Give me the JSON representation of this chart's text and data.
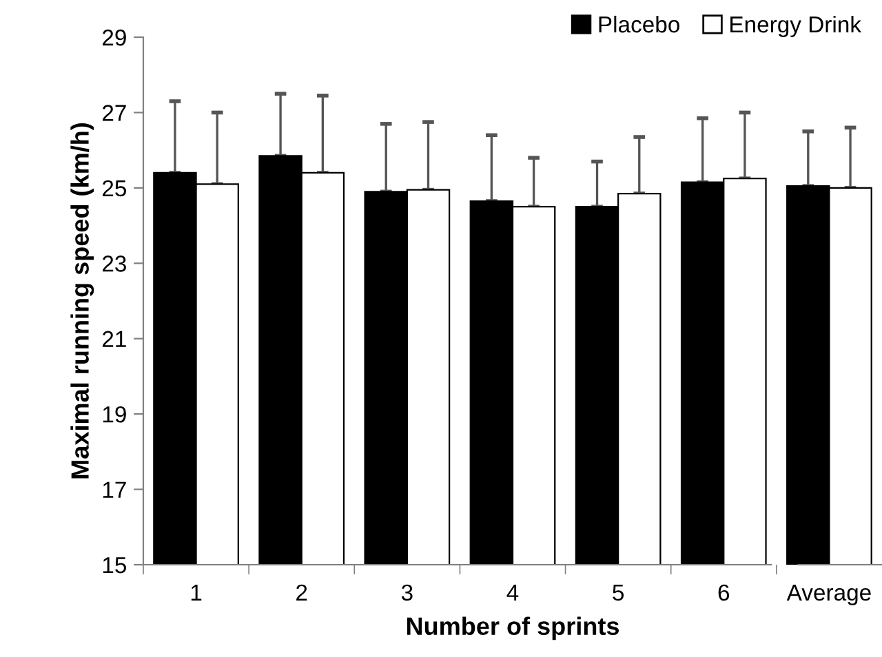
{
  "chart_data": {
    "type": "bar",
    "xlabel": "Number of sprints",
    "ylabel": "Maximal running speed (km/h)",
    "categories": [
      "1",
      "2",
      "3",
      "4",
      "5",
      "6",
      "Average"
    ],
    "series": [
      {
        "name": "Placebo",
        "color": "#000000",
        "values": [
          25.4,
          25.85,
          24.9,
          24.65,
          24.5,
          25.15,
          25.05
        ],
        "errors": [
          [
            25.4,
            27.3
          ],
          [
            25.85,
            27.5
          ],
          [
            24.9,
            26.7
          ],
          [
            24.65,
            26.4
          ],
          [
            24.5,
            25.7
          ],
          [
            25.15,
            26.85
          ],
          [
            25.05,
            26.5
          ]
        ]
      },
      {
        "name": "Energy Drink",
        "color": "#ffffff",
        "values": [
          25.1,
          25.4,
          24.95,
          24.5,
          24.85,
          25.25,
          25.0
        ],
        "errors": [
          [
            25.1,
            27.0
          ],
          [
            25.4,
            27.45
          ],
          [
            24.95,
            26.75
          ],
          [
            24.5,
            25.8
          ],
          [
            24.85,
            26.35
          ],
          [
            25.25,
            27.0
          ],
          [
            25.0,
            26.6
          ]
        ]
      }
    ],
    "ylim": [
      15,
      29
    ],
    "yticks": [
      15,
      17,
      19,
      21,
      23,
      25,
      27,
      29
    ],
    "grid": false,
    "legend": "top right"
  }
}
